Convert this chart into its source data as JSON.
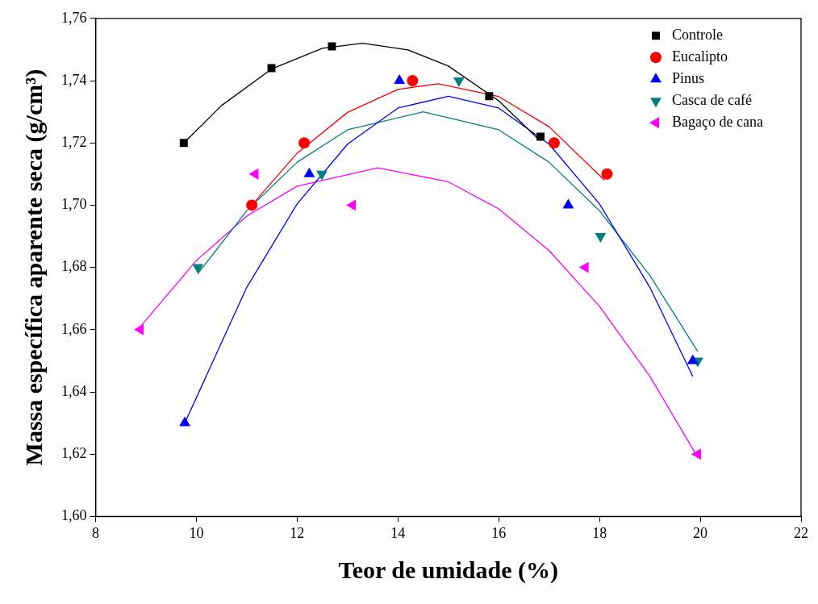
{
  "chart_data": {
    "type": "scatter",
    "xlabel": "Teor de umidade (%)",
    "ylabel": "Massa específica aparente seca (g/cm³)",
    "xlim": [
      8,
      22
    ],
    "xticks": [
      8,
      10,
      12,
      14,
      16,
      18,
      20,
      22
    ],
    "ylim": [
      1.6,
      1.76
    ],
    "yticks": [
      {
        "value": 1.6,
        "label": "1,60"
      },
      {
        "value": 1.62,
        "label": "1,62"
      },
      {
        "value": 1.64,
        "label": "1,64"
      },
      {
        "value": 1.66,
        "label": "1,66"
      },
      {
        "value": 1.68,
        "label": "1,68"
      },
      {
        "value": 1.7,
        "label": "1,70"
      },
      {
        "value": 1.72,
        "label": "1,72"
      },
      {
        "value": 1.74,
        "label": "1,74"
      },
      {
        "value": 1.76,
        "label": "1,76"
      }
    ],
    "grid": false,
    "legend": "top right",
    "series": [
      {
        "name": "Controle",
        "color": "#000000",
        "marker": "square",
        "x": [
          9.75,
          11.49,
          12.69,
          15.81,
          16.83
        ],
        "values": [
          1.72,
          1.744,
          1.751,
          1.735,
          1.722
        ]
      },
      {
        "name": "Eucalipto",
        "color": "#ff0000",
        "marker": "circle",
        "x": [
          11.1,
          12.14,
          14.29,
          17.1,
          18.15
        ],
        "values": [
          1.7,
          1.72,
          1.74,
          1.72,
          1.71
        ]
      },
      {
        "name": "Pinus",
        "color": "#0000ff",
        "marker": "triangle",
        "x": [
          9.77,
          12.24,
          14.03,
          17.38,
          19.85
        ],
        "values": [
          1.63,
          1.71,
          1.74,
          1.7,
          1.65
        ]
      },
      {
        "name": "Casca de café",
        "color": "#008080",
        "marker": "triangle-down",
        "x": [
          10.03,
          12.49,
          15.21,
          18.02,
          19.95
        ],
        "values": [
          1.68,
          1.71,
          1.74,
          1.69,
          1.65
        ]
      },
      {
        "name": "Bagaço de cana",
        "color": "#ff00ff",
        "marker": "triangle-left",
        "x": [
          8.89,
          11.17,
          13.1,
          17.72,
          19.95
        ],
        "values": [
          1.66,
          1.71,
          1.7,
          1.68,
          1.62
        ]
      },
      {
        "type": "line",
        "color": "#000000",
        "x": [
          9.75,
          10.5,
          11.5,
          12.5,
          13.3,
          14.2,
          15,
          16,
          16.8
        ],
        "values": [
          1.72,
          1.732,
          1.7438,
          1.7504,
          1.752,
          1.7499,
          1.7447,
          1.7335,
          1.721
        ]
      },
      {
        "type": "line",
        "color": "#ff0000",
        "x": [
          11.1,
          12,
          13,
          14,
          14.8,
          16,
          17,
          18.1
        ],
        "values": [
          1.7,
          1.7167,
          1.7298,
          1.7372,
          1.739,
          1.7349,
          1.7252,
          1.708
        ]
      },
      {
        "type": "line",
        "color": "#0000ff",
        "x": [
          9.77,
          11,
          12,
          13,
          14,
          15,
          16,
          17,
          18,
          19,
          19.85
        ],
        "values": [
          1.63,
          1.6736,
          1.7004,
          1.7196,
          1.7312,
          1.735,
          1.7312,
          1.7196,
          1.7004,
          1.6736,
          1.645
        ]
      },
      {
        "type": "line",
        "color": "#008080",
        "x": [
          10.03,
          11,
          12,
          13,
          14.5,
          16,
          17,
          18,
          19,
          19.95
        ],
        "values": [
          1.678,
          1.6982,
          1.7138,
          1.7242,
          1.73,
          1.7242,
          1.7138,
          1.6982,
          1.6774,
          1.653
        ]
      },
      {
        "type": "line",
        "color": "#ff00ff",
        "x": [
          8.89,
          10,
          11,
          12,
          13.6,
          15,
          16,
          17,
          18,
          19,
          19.95
        ],
        "values": [
          1.661,
          1.6822,
          1.6965,
          1.7061,
          1.712,
          1.7075,
          1.6988,
          1.6854,
          1.6675,
          1.645,
          1.619
        ]
      }
    ]
  }
}
